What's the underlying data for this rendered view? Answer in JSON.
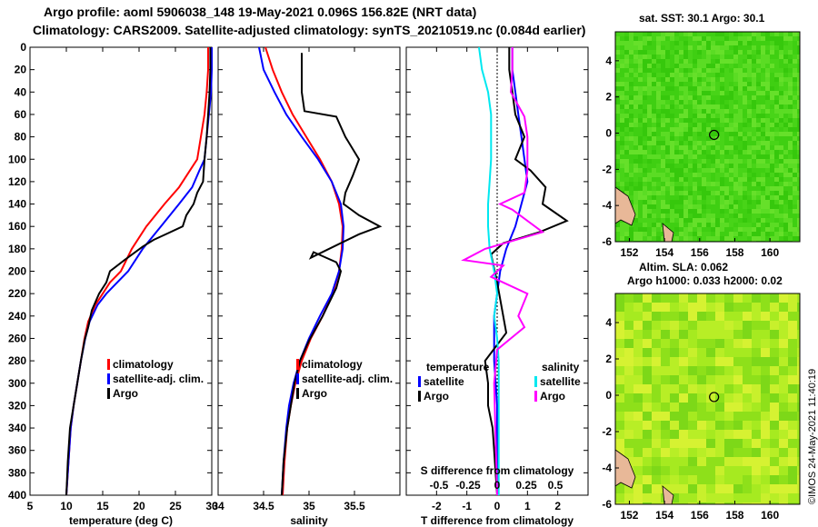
{
  "header": {
    "line1": "Argo profile: aoml 5906038_148 19-May-2021 0.096S 156.82E (NRT data)",
    "line2": "Climatology: CARS2009. Satellite-adjusted climatology: synTS_20210519.nc (0.084d earlier)"
  },
  "footer": {
    "stamp": "©IMOS 24-May-2021 11:40:19"
  },
  "colors": {
    "climatology": "#ff0000",
    "satellite": "#0000ff",
    "argo": "#000000",
    "satellite_s": "#00e0f0",
    "argo_s": "#ff00ff"
  },
  "maps": [
    {
      "title": "sat. SST: 30.1 Argo: 30.1",
      "base": "#4fd61c",
      "variant": "sst",
      "xticks": [
        152,
        154,
        156,
        158,
        160
      ],
      "yticks": [
        4,
        2,
        0,
        -2,
        -4,
        -6
      ]
    },
    {
      "title_line1": "Altim. SLA: 0.062",
      "title_line2": "Argo h1000: 0.033 h2000: 0.02",
      "base": "#9ee81e",
      "variant": "sla",
      "xticks": [
        152,
        154,
        156,
        158,
        160
      ],
      "yticks": [
        4,
        2,
        0,
        -2,
        -4,
        -6
      ]
    }
  ],
  "chart_data": [
    {
      "type": "line",
      "xlabel": "temperature (deg C)",
      "ylabel": "",
      "xlim": [
        5,
        30
      ],
      "ylim": [
        0,
        400
      ],
      "y_inverted": true,
      "xticks": [
        5,
        10,
        15,
        20,
        25,
        30
      ],
      "xtick_labels": [
        "5",
        "10",
        "15",
        "20",
        "25",
        "30"
      ],
      "yticks": [
        0,
        20,
        40,
        60,
        80,
        100,
        120,
        140,
        160,
        180,
        200,
        220,
        240,
        260,
        280,
        300,
        320,
        340,
        360,
        380,
        400
      ],
      "legend": [
        "climatology",
        "satellite-adj. clim.",
        "Argo"
      ],
      "series": [
        {
          "name": "climatology",
          "color": "red",
          "x": [
            29.5,
            29.5,
            29.3,
            29.0,
            28.5,
            28.0,
            27.0,
            25.5,
            23.5,
            21.0,
            19.0,
            17.5,
            16.0,
            15.0,
            14.0,
            13.0,
            12.5,
            12.0,
            11.5,
            11.0,
            10.6,
            10.3,
            10.0
          ],
          "y": [
            0,
            20,
            40,
            60,
            80,
            100,
            110,
            125,
            140,
            160,
            180,
            200,
            210,
            220,
            230,
            245,
            260,
            280,
            300,
            320,
            340,
            370,
            400
          ]
        },
        {
          "name": "satellite-adj. clim.",
          "color": "blue",
          "x": [
            30.0,
            30.0,
            29.9,
            29.6,
            29.3,
            29.0,
            28.3,
            27.3,
            25.5,
            23.0,
            20.5,
            18.5,
            17.0,
            15.5,
            14.3,
            13.2,
            12.6,
            12.0,
            11.5,
            11.0,
            10.6,
            10.3,
            10.0
          ],
          "y": [
            0,
            20,
            40,
            60,
            80,
            100,
            110,
            125,
            140,
            160,
            180,
            200,
            210,
            220,
            230,
            245,
            260,
            280,
            300,
            320,
            340,
            370,
            400
          ]
        },
        {
          "name": "Argo",
          "color": "black",
          "x": [
            29.8,
            29.8,
            29.7,
            29.5,
            29.3,
            29.0,
            28.8,
            28.0,
            27.5,
            26.5,
            26.0,
            24.0,
            22.0,
            20.5,
            18.0,
            16.0,
            15.5,
            14.5,
            13.5,
            13.0,
            12.5,
            12.0,
            11.5,
            11.0,
            10.5,
            10.2,
            10.0
          ],
          "y": [
            0,
            20,
            40,
            60,
            80,
            100,
            120,
            130,
            140,
            150,
            160,
            166,
            172,
            178,
            190,
            200,
            210,
            220,
            235,
            250,
            262,
            280,
            300,
            320,
            340,
            370,
            400
          ]
        }
      ]
    },
    {
      "type": "line",
      "xlabel": "salinity",
      "ylabel": "",
      "xlim": [
        34.0,
        36.0
      ],
      "ylim": [
        0,
        400
      ],
      "y_inverted": true,
      "xticks": [
        34.0,
        34.5,
        35.0,
        35.5
      ],
      "xtick_labels": [
        "34",
        "34.5",
        "35",
        "35.5"
      ],
      "yticks": [
        0,
        20,
        40,
        60,
        80,
        100,
        120,
        140,
        160,
        180,
        200,
        220,
        240,
        260,
        280,
        300,
        320,
        340,
        360,
        380,
        400
      ],
      "legend": [
        "climatology",
        "satellite-adj. clim.",
        "Argo"
      ],
      "series": [
        {
          "name": "climatology",
          "color": "red",
          "x": [
            34.52,
            34.6,
            34.7,
            34.82,
            34.97,
            35.12,
            35.25,
            35.33,
            35.37,
            35.36,
            35.33,
            35.26,
            35.15,
            35.02,
            34.92,
            34.85,
            34.8,
            34.76,
            34.73,
            34.71
          ],
          "y": [
            0,
            20,
            40,
            60,
            80,
            100,
            120,
            140,
            160,
            180,
            200,
            220,
            240,
            260,
            280,
            300,
            320,
            340,
            370,
            400
          ]
        },
        {
          "name": "satellite-adj. clim.",
          "color": "blue",
          "x": [
            34.45,
            34.5,
            34.62,
            34.75,
            34.92,
            35.1,
            35.25,
            35.35,
            35.38,
            35.37,
            35.33,
            35.25,
            35.12,
            35.0,
            34.9,
            34.83,
            34.78,
            34.75,
            34.72,
            34.7
          ],
          "y": [
            0,
            20,
            40,
            60,
            80,
            100,
            120,
            140,
            160,
            180,
            200,
            220,
            240,
            260,
            280,
            300,
            320,
            340,
            370,
            400
          ]
        },
        {
          "name": "Argo",
          "color": "black",
          "x": [
            34.92,
            34.92,
            34.92,
            34.95,
            35.3,
            35.4,
            35.55,
            35.48,
            35.4,
            35.38,
            35.55,
            35.78,
            35.55,
            35.02,
            35.05,
            35.3,
            35.35,
            35.3,
            35.15,
            35.0,
            34.9,
            34.84,
            34.8,
            34.76,
            34.72,
            34.7
          ],
          "y": [
            5,
            20,
            40,
            57,
            62,
            80,
            100,
            115,
            130,
            140,
            150,
            160,
            167,
            188,
            183,
            192,
            200,
            215,
            240,
            262,
            280,
            300,
            320,
            340,
            370,
            400
          ]
        }
      ]
    },
    {
      "type": "line",
      "xlabel": "T difference from climatology",
      "xlabel_top": "S difference from climatology",
      "ylabel": "",
      "xlim": [
        -3,
        3
      ],
      "ylim": [
        0,
        400
      ],
      "y_inverted": true,
      "xticks": [
        -2,
        -1,
        0,
        1,
        2
      ],
      "xtick_labels": [
        "-2",
        "-1",
        "0",
        "1",
        "2"
      ],
      "s_xticks": [
        -0.5,
        -0.25,
        0,
        0.25,
        0.5
      ],
      "s_xtick_labels": [
        "-0.5",
        "-0.25",
        "0",
        "0.25",
        "0.5"
      ],
      "yticks": [
        0,
        20,
        40,
        60,
        80,
        100,
        120,
        140,
        160,
        180,
        200,
        220,
        240,
        260,
        280,
        300,
        320,
        340,
        360,
        380,
        400
      ],
      "legend_temperature": {
        "title": "temperature",
        "items": [
          "satellite",
          "Argo"
        ]
      },
      "legend_salinity": {
        "title": "salinity",
        "items": [
          "satellite",
          "Argo"
        ]
      },
      "series": [
        {
          "name": "T satellite",
          "color": "blue",
          "x": [
            0.5,
            0.5,
            0.6,
            0.7,
            0.8,
            0.9,
            1.0,
            0.8,
            0.6,
            0.3,
            0.1,
            0.0,
            -0.1,
            -0.1,
            -0.1,
            -0.05,
            0.0,
            0.0,
            0.0,
            0.0,
            0.0,
            0.0
          ],
          "y": [
            0,
            20,
            40,
            60,
            80,
            100,
            120,
            140,
            160,
            180,
            200,
            220,
            240,
            260,
            280,
            300,
            320,
            340,
            360,
            380,
            400,
            400
          ]
        },
        {
          "name": "T Argo",
          "color": "black",
          "x": [
            0.4,
            0.4,
            0.5,
            0.6,
            0.9,
            0.6,
            1.1,
            1.6,
            1.5,
            2.3,
            1.4,
            0.2,
            -0.2,
            0.0,
            0.3,
            -0.4,
            -0.3,
            -0.3,
            -0.15,
            -0.1,
            -0.05,
            0.0
          ],
          "y": [
            0,
            20,
            40,
            60,
            80,
            100,
            110,
            125,
            140,
            155,
            165,
            175,
            185,
            210,
            255,
            280,
            300,
            320,
            340,
            360,
            380,
            400
          ]
        },
        {
          "name": "S satellite",
          "color": "cyan",
          "x": [
            -0.6,
            -0.5,
            -0.3,
            -0.2,
            -0.2,
            -0.2,
            -0.25,
            -0.3,
            -0.3,
            -0.25,
            -0.1,
            0.0,
            -0.1,
            0.0,
            0.05,
            0.05,
            0.05,
            0.05,
            0.05,
            0.05,
            0.05
          ],
          "y": [
            0,
            20,
            40,
            60,
            80,
            100,
            120,
            140,
            160,
            180,
            200,
            220,
            240,
            260,
            280,
            300,
            320,
            340,
            360,
            380,
            400
          ]
        },
        {
          "name": "S Argo",
          "color": "magenta",
          "x": [
            0.5,
            0.5,
            0.45,
            0.9,
            1.0,
            1.0,
            0.9,
            0.1,
            0.5,
            1.5,
            -0.4,
            -1.1,
            0.2,
            -0.2,
            1.0,
            0.7,
            0.9,
            0.0,
            -0.1,
            -0.05,
            0.0
          ],
          "y": [
            0,
            20,
            40,
            62,
            80,
            110,
            130,
            140,
            145,
            165,
            180,
            190,
            195,
            205,
            220,
            240,
            250,
            270,
            300,
            350,
            400
          ]
        }
      ]
    }
  ]
}
